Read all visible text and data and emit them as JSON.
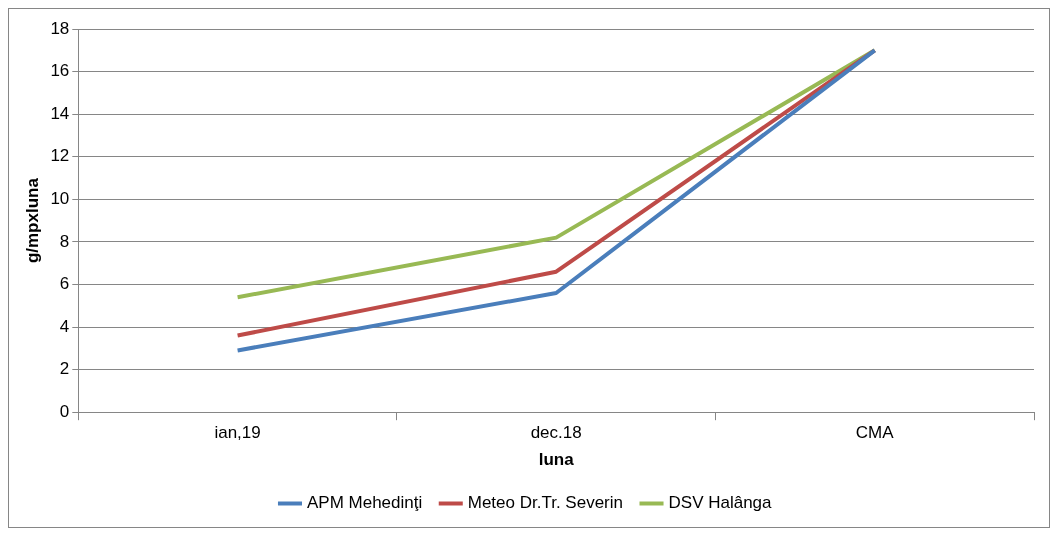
{
  "chart_data": {
    "type": "line",
    "xlabel": "luna",
    "ylabel": "g/mpxluna",
    "categories": [
      "ian,19",
      "dec.18",
      "CMA"
    ],
    "series": [
      {
        "name": "APM Mehedinţi",
        "color": "#4a7ebb",
        "values": [
          2.9,
          5.6,
          17
        ]
      },
      {
        "name": "Meteo Dr.Tr. Severin",
        "color": "#be4b48",
        "values": [
          3.6,
          6.6,
          17
        ]
      },
      {
        "name": "DSV Halânga",
        "color": "#98b954",
        "values": [
          5.4,
          8.2,
          17
        ]
      }
    ],
    "ylim": [
      0,
      18
    ],
    "yticks": [
      0,
      2,
      4,
      6,
      8,
      10,
      12,
      14,
      16,
      18
    ],
    "grid": "y",
    "legend": "bottom",
    "marker": "none",
    "line_style": "solid"
  }
}
